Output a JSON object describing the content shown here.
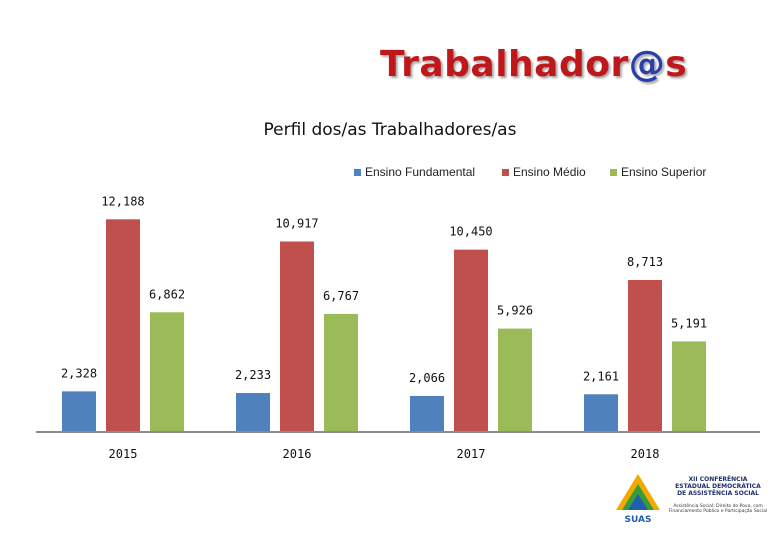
{
  "header": {
    "brand_part1": "Trabalhador",
    "brand_part2": "@",
    "brand_part3": "s"
  },
  "logo": {
    "line1": "XII CONFERÊNCIA",
    "line2": "ESTADUAL DEMOCRÁTICA",
    "line3": "DE ASSISTÊNCIA SOCIAL",
    "sub": "Assistência Social: Direito do Povo, com Financiamento Público e Participação Social",
    "badge": "SUAS"
  },
  "colors": {
    "fundamental": "#4f81bd",
    "medio": "#c0504d",
    "superior": "#9bbb59",
    "brand_red": "#c0171b",
    "brand_blue": "#2a3fa8"
  },
  "chart_data": {
    "type": "bar",
    "title": "Perfil dos/as Trabalhadores/as",
    "categories": [
      "2015",
      "2016",
      "2017",
      "2018"
    ],
    "series": [
      {
        "name": "Ensino Fundamental",
        "values": [
          2328,
          2233,
          2066,
          2161
        ],
        "labels": [
          "2,328",
          "2,233",
          "2,066",
          "2,161"
        ]
      },
      {
        "name": "Ensino Médio",
        "values": [
          12188,
          10917,
          10450,
          8713
        ],
        "labels": [
          "12,188",
          "10,917",
          "10,450",
          "8,713"
        ]
      },
      {
        "name": "Ensino Superior",
        "values": [
          6862,
          6767,
          5926,
          5191
        ],
        "labels": [
          "6,862",
          "6,767",
          "5,926",
          "5,191"
        ]
      }
    ],
    "legend_position": "top-right",
    "grid": false
  }
}
